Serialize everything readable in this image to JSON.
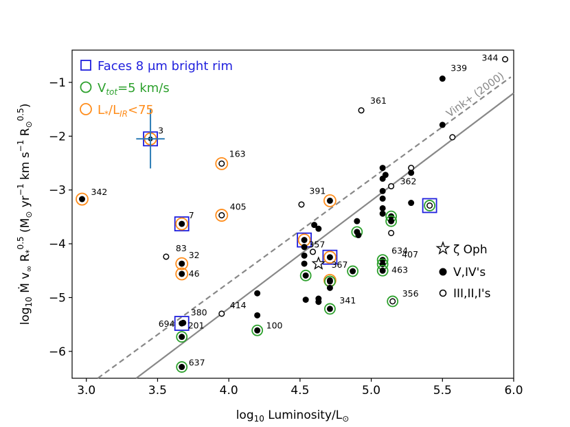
{
  "chart_data": {
    "type": "scatter",
    "xlabel": "log10 Luminosity/L⊙",
    "ylabel": "log10 Ṁ v∞ R*^0.5 (M⊙ yr−1 km s−1 R⊙^0.5)",
    "xlim": [
      2.9,
      6.0
    ],
    "ylim": [
      -6.5,
      -0.4
    ],
    "x_ticks": [
      3.0,
      3.5,
      4.0,
      4.5,
      5.0,
      5.5,
      6.0
    ],
    "x_tick_labels": [
      "3.0",
      "3.5",
      "4.0",
      "4.5",
      "5.0",
      "5.5",
      "6.0"
    ],
    "y_ticks": [
      -6,
      -5,
      -4,
      -3,
      -2,
      -1
    ],
    "y_tick_labels": [
      "−6",
      "−5",
      "−4",
      "−3",
      "−2",
      "−1"
    ],
    "grid": false,
    "colors": {
      "blue": "#1f1fdd",
      "green": "#2ca02c",
      "orange": "#ff8c1a",
      "errorbar": "#2a7bb5",
      "line": "#888888"
    },
    "lines": [
      {
        "name": "Vink+ (2000)",
        "style": "dashed",
        "x": [
          3.08,
          5.98
        ],
        "y": [
          -6.5,
          -0.9
        ],
        "label": "Vink+ (2000)"
      },
      {
        "name": "fit",
        "style": "solid",
        "x": [
          3.35,
          6.0
        ],
        "y": [
          -6.5,
          -1.2
        ]
      }
    ],
    "legend_top_left": [
      {
        "marker": "square-blue",
        "text": "Faces 8 μm bright rim",
        "color": "#1f1fdd"
      },
      {
        "marker": "circle-green",
        "text": "Vtot=5 km/s",
        "color": "#2ca02c"
      },
      {
        "marker": "circle-orange",
        "text": "L*/LIR<75",
        "color": "#ff8c1a"
      }
    ],
    "legend_bottom_right": [
      {
        "marker": "star",
        "text": "ζ Oph"
      },
      {
        "marker": "filled",
        "text": "V,IV's"
      },
      {
        "marker": "open",
        "text": "III,II,I's"
      }
    ],
    "legend_texts": {
      "rim": "Faces 8 μm bright rim",
      "vtot_pre": "V",
      "vtot_sub": "tot",
      "vtot_post": "=5 km/s",
      "lum_pre": "L",
      "lum_sub1": "*",
      "lum_mid": "/L",
      "lum_sub2": "IR",
      "lum_post": "<75",
      "zeta": "ζ Oph",
      "dwarf": "V,IV's",
      "giant": "III,II,I's"
    },
    "star_point": {
      "name": "zeta Oph",
      "x": 4.63,
      "y": -4.37
    },
    "error_bar_point": {
      "x": 3.45,
      "y": -2.05,
      "xerr": 0.1,
      "yerr": 0.55
    },
    "points": [
      {
        "x": 2.97,
        "y": -3.17,
        "fill": "filled",
        "ring": "orange",
        "label": "342"
      },
      {
        "x": 3.45,
        "y": -2.05,
        "fill": "filled-small",
        "ring": "orange",
        "square": true,
        "label": "3"
      },
      {
        "x": 3.67,
        "y": -3.63,
        "fill": "filled",
        "ring": "orange",
        "square": true,
        "label": "7"
      },
      {
        "x": 3.56,
        "y": -4.24,
        "fill": "open",
        "label": "83"
      },
      {
        "x": 3.67,
        "y": -4.37,
        "fill": "filled",
        "ring": "orange",
        "label": "32"
      },
      {
        "x": 3.67,
        "y": -4.56,
        "fill": "filled",
        "ring": "orange",
        "label": "46"
      },
      {
        "x": 3.67,
        "y": -5.48,
        "fill": "filled",
        "square": true,
        "label": "694"
      },
      {
        "x": 3.68,
        "y": -5.47,
        "fill": "filled",
        "label": "380"
      },
      {
        "x": 3.67,
        "y": -5.73,
        "fill": "filled",
        "ring": "green",
        "label": "201"
      },
      {
        "x": 3.67,
        "y": -6.29,
        "fill": "filled",
        "ring": "green",
        "label": "637"
      },
      {
        "x": 3.95,
        "y": -2.51,
        "fill": "open",
        "ring": "orange",
        "label": "163"
      },
      {
        "x": 3.95,
        "y": -3.47,
        "fill": "open",
        "ring": "orange",
        "label": "405"
      },
      {
        "x": 3.95,
        "y": -5.3,
        "fill": "open",
        "label": "414"
      },
      {
        "x": 4.2,
        "y": -4.92,
        "fill": "filled"
      },
      {
        "x": 4.2,
        "y": -5.33,
        "fill": "filled"
      },
      {
        "x": 4.2,
        "y": -5.61,
        "fill": "filled",
        "ring": "green",
        "label": "100"
      },
      {
        "x": 4.51,
        "y": -3.27,
        "fill": "open"
      },
      {
        "x": 4.53,
        "y": -3.93,
        "fill": "filled",
        "ring": "orange",
        "square": true
      },
      {
        "x": 4.53,
        "y": -4.06,
        "fill": "filled"
      },
      {
        "x": 4.53,
        "y": -4.22,
        "fill": "filled"
      },
      {
        "x": 4.53,
        "y": -4.37,
        "fill": "filled"
      },
      {
        "x": 4.54,
        "y": -4.59,
        "fill": "filled",
        "ring": "green"
      },
      {
        "x": 4.54,
        "y": -5.04,
        "fill": "filled"
      },
      {
        "x": 4.59,
        "y": -4.15,
        "fill": "open"
      },
      {
        "x": 4.6,
        "y": -3.65,
        "fill": "filled"
      },
      {
        "x": 4.63,
        "y": -3.72,
        "fill": "filled"
      },
      {
        "x": 4.63,
        "y": -5.02,
        "fill": "filled"
      },
      {
        "x": 4.63,
        "y": -5.08,
        "fill": "filled"
      },
      {
        "x": 4.71,
        "y": -3.2,
        "fill": "filled",
        "ring": "orange",
        "label": "391"
      },
      {
        "x": 4.71,
        "y": -4.25,
        "fill": "filled",
        "ring": "orange",
        "square": true,
        "label": "357"
      },
      {
        "x": 4.71,
        "y": -4.68,
        "fill": "filled",
        "ring": "orange"
      },
      {
        "x": 4.71,
        "y": -4.7,
        "fill": "filled",
        "ring": "green"
      },
      {
        "x": 4.71,
        "y": -4.82,
        "fill": "filled"
      },
      {
        "x": 4.71,
        "y": -5.21,
        "fill": "filled",
        "ring": "green",
        "label": "341"
      },
      {
        "x": 4.87,
        "y": -4.51,
        "fill": "filled",
        "ring": "green",
        "label": "367"
      },
      {
        "x": 4.9,
        "y": -3.58,
        "fill": "filled"
      },
      {
        "x": 4.9,
        "y": -3.78,
        "fill": "filled",
        "ring": "green"
      },
      {
        "x": 4.91,
        "y": -3.84,
        "fill": "filled"
      },
      {
        "x": 4.93,
        "y": -1.52,
        "fill": "open",
        "label": "361"
      },
      {
        "x": 5.08,
        "y": -2.59,
        "fill": "filled"
      },
      {
        "x": 5.08,
        "y": -2.79,
        "fill": "filled"
      },
      {
        "x": 5.08,
        "y": -3.02,
        "fill": "filled"
      },
      {
        "x": 5.08,
        "y": -3.16,
        "fill": "filled"
      },
      {
        "x": 5.08,
        "y": -3.34,
        "fill": "filled"
      },
      {
        "x": 5.08,
        "y": -3.44,
        "fill": "filled"
      },
      {
        "x": 5.08,
        "y": -4.3,
        "fill": "filled",
        "ring": "green",
        "label": "634"
      },
      {
        "x": 5.08,
        "y": -4.38,
        "fill": "filled",
        "ring": "green",
        "label": "407"
      },
      {
        "x": 5.08,
        "y": -4.5,
        "fill": "filled",
        "ring": "green",
        "label": "463"
      },
      {
        "x": 5.1,
        "y": -2.72,
        "fill": "filled"
      },
      {
        "x": 5.14,
        "y": -3.49,
        "fill": "filled",
        "ring": "green"
      },
      {
        "x": 5.14,
        "y": -3.58,
        "fill": "filled",
        "ring": "green"
      },
      {
        "x": 5.14,
        "y": -3.8,
        "fill": "open"
      },
      {
        "x": 5.14,
        "y": -2.93,
        "fill": "open",
        "label": "362"
      },
      {
        "x": 5.15,
        "y": -5.07,
        "fill": "open",
        "ring": "green",
        "label": "356"
      },
      {
        "x": 5.28,
        "y": -2.59,
        "fill": "open"
      },
      {
        "x": 5.28,
        "y": -2.68,
        "fill": "filled"
      },
      {
        "x": 5.28,
        "y": -3.24,
        "fill": "filled"
      },
      {
        "x": 5.41,
        "y": -3.29,
        "fill": "open",
        "ring": "green",
        "square": true
      },
      {
        "x": 5.5,
        "y": -0.93,
        "fill": "filled",
        "label": "339"
      },
      {
        "x": 5.5,
        "y": -1.79,
        "fill": "filled"
      },
      {
        "x": 5.57,
        "y": -2.02,
        "fill": "open"
      },
      {
        "x": 5.94,
        "y": -0.57,
        "fill": "open",
        "label": "344"
      }
    ]
  }
}
